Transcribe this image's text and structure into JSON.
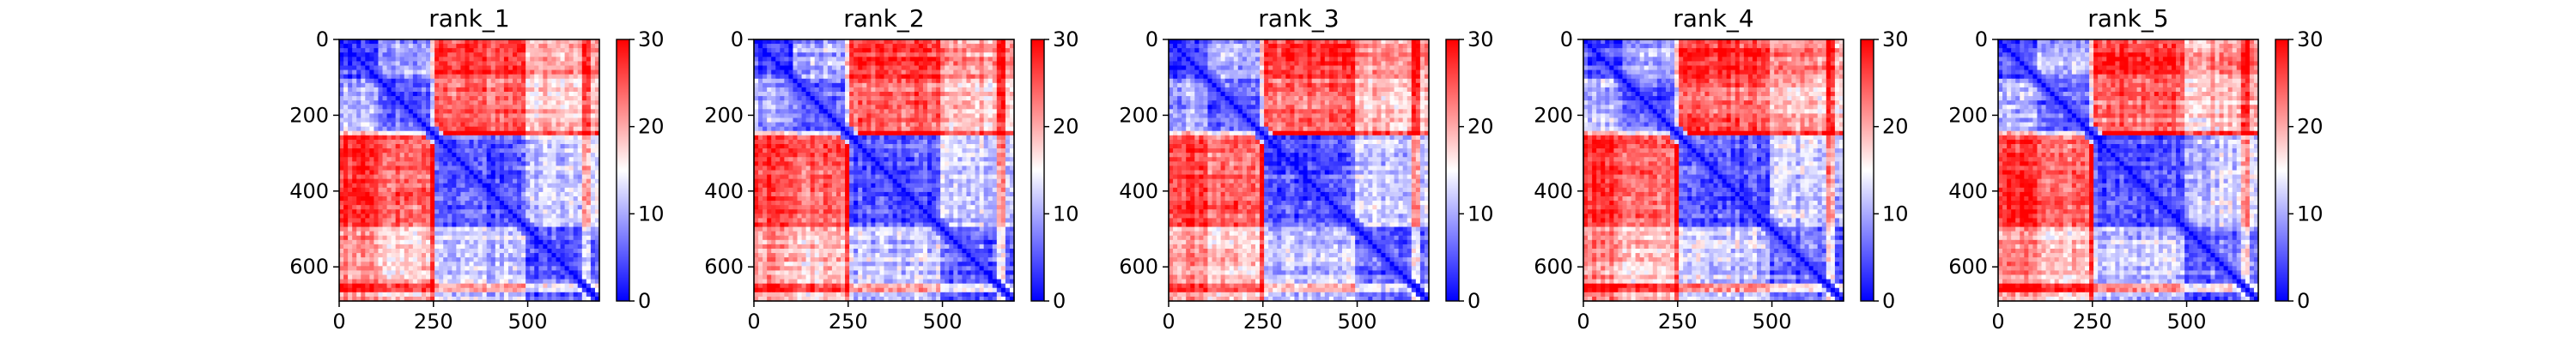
{
  "chart_data": [
    {
      "type": "heatmap",
      "title": "rank_1",
      "xticks": [
        "0",
        "250",
        "500"
      ],
      "yticks": [
        "0",
        "200",
        "400",
        "600"
      ],
      "colorbar": {
        "ticks": [
          "0",
          "10",
          "20",
          "30"
        ],
        "range": [
          0,
          30
        ],
        "colormap": [
          "#0000ff",
          "#ffffff",
          "#ff0000"
        ]
      },
      "matrix_size": 690
    },
    {
      "type": "heatmap",
      "title": "rank_2",
      "xticks": [
        "0",
        "250",
        "500"
      ],
      "yticks": [
        "0",
        "200",
        "400",
        "600"
      ],
      "colorbar": {
        "ticks": [
          "0",
          "10",
          "20",
          "30"
        ],
        "range": [
          0,
          30
        ],
        "colormap": [
          "#0000ff",
          "#ffffff",
          "#ff0000"
        ]
      },
      "matrix_size": 690
    },
    {
      "type": "heatmap",
      "title": "rank_3",
      "xticks": [
        "0",
        "250",
        "500"
      ],
      "yticks": [
        "0",
        "200",
        "400",
        "600"
      ],
      "colorbar": {
        "ticks": [
          "0",
          "10",
          "20",
          "30"
        ],
        "range": [
          0,
          30
        ],
        "colormap": [
          "#0000ff",
          "#ffffff",
          "#ff0000"
        ]
      },
      "matrix_size": 690
    },
    {
      "type": "heatmap",
      "title": "rank_4",
      "xticks": [
        "0",
        "250",
        "500"
      ],
      "yticks": [
        "0",
        "200",
        "400",
        "600"
      ],
      "colorbar": {
        "ticks": [
          "0",
          "10",
          "20",
          "30"
        ],
        "range": [
          0,
          30
        ],
        "colormap": [
          "#0000ff",
          "#ffffff",
          "#ff0000"
        ]
      },
      "matrix_size": 690
    },
    {
      "type": "heatmap",
      "title": "rank_5",
      "xticks": [
        "0",
        "250",
        "500"
      ],
      "yticks": [
        "0",
        "200",
        "400",
        "600"
      ],
      "colorbar": {
        "ticks": [
          "0",
          "10",
          "20",
          "30"
        ],
        "range": [
          0,
          30
        ],
        "colormap": [
          "#0000ff",
          "#ffffff",
          "#ff0000"
        ]
      },
      "matrix_size": 690
    }
  ]
}
